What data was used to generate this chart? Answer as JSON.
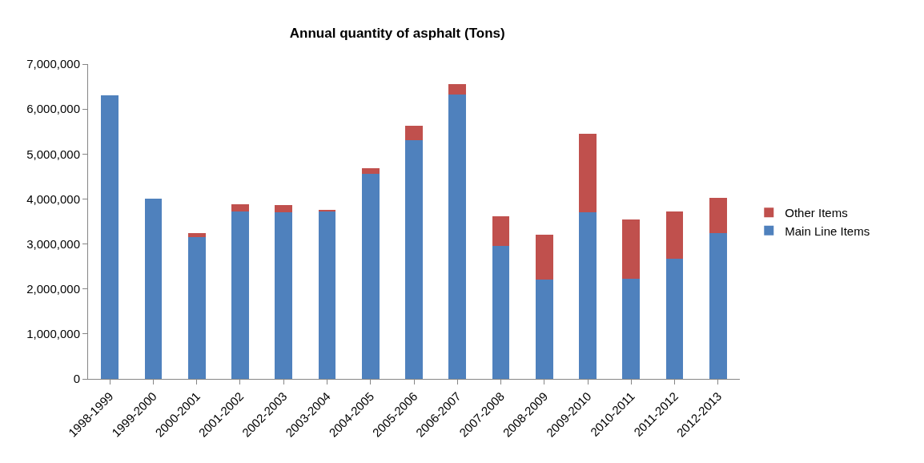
{
  "chart_data": {
    "type": "bar",
    "title": "Annual quantity of asphalt (Tons)",
    "stacked": true,
    "legend": "right",
    "categories": [
      "1998-1999",
      "1999-2000",
      "2000-2001",
      "2001-2002",
      "2002-2003",
      "2003-2004",
      "2004-2005",
      "2005-2006",
      "2006-2007",
      "2007-2008",
      "2008-2009",
      "2009-2010",
      "2010-2011",
      "2011-2012",
      "2012-2013"
    ],
    "series": [
      {
        "name": "Main Line Items",
        "color": "#4f81bd",
        "values": [
          6300000,
          4000000,
          3150000,
          3720000,
          3700000,
          3720000,
          4560000,
          5310000,
          6330000,
          2960000,
          2200000,
          3700000,
          2220000,
          2680000,
          3240000
        ]
      },
      {
        "name": "Other Items",
        "color": "#c0504d",
        "values": [
          0,
          0,
          100000,
          170000,
          160000,
          40000,
          130000,
          320000,
          220000,
          650000,
          1000000,
          1750000,
          1320000,
          1040000,
          790000
        ]
      }
    ],
    "ylim": [
      0,
      7000000
    ],
    "yticks": [
      {
        "value": 0,
        "label": "0"
      },
      {
        "value": 1000000,
        "label": "1,000,000"
      },
      {
        "value": 2000000,
        "label": "2,000,000"
      },
      {
        "value": 3000000,
        "label": "3,000,000"
      },
      {
        "value": 4000000,
        "label": "4,000,000"
      },
      {
        "value": 5000000,
        "label": "5,000,000"
      },
      {
        "value": 6000000,
        "label": "6,000,000"
      },
      {
        "value": 7000000,
        "label": "7,000,000"
      }
    ]
  }
}
